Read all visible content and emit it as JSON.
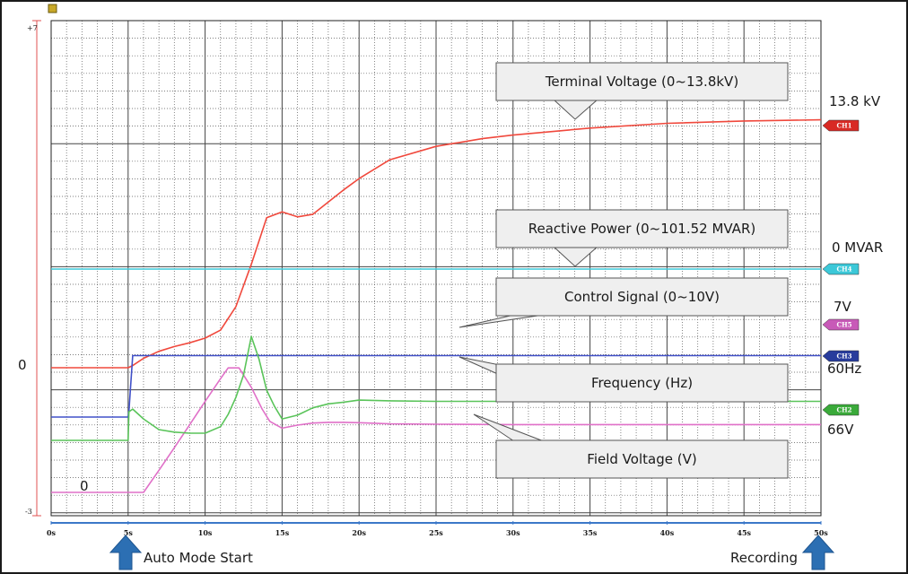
{
  "chart_data": {
    "type": "line",
    "x_unit": "s",
    "xlim": [
      0,
      50
    ],
    "x_ticks": [
      "0s",
      "5s",
      "10s",
      "15s",
      "20s",
      "25s",
      "30s",
      "35s",
      "40s",
      "45s",
      "50s"
    ],
    "y_ticks": {
      "top": "+7",
      "bottom": "-3"
    },
    "grid": true,
    "zero_labels": {
      "left": "0",
      "inner": "0"
    },
    "series": [
      {
        "name": "Terminal Voltage (0~13.8kV)",
        "channel": "CH1",
        "end_label": "13.8 kV",
        "color": "#f0483c",
        "x": [
          0,
          5,
          5.3,
          6,
          7,
          8,
          9,
          10,
          11,
          12,
          13,
          14,
          15,
          16,
          17,
          18,
          19,
          20,
          22,
          25,
          28,
          30,
          35,
          40,
          45,
          50
        ],
        "y": [
          0,
          0,
          0.09,
          0.4,
          0.7,
          0.9,
          1.06,
          1.26,
          1.6,
          2.6,
          4.4,
          6.38,
          6.63,
          6.42,
          6.53,
          7.05,
          7.57,
          8.05,
          8.85,
          9.42,
          9.75,
          9.9,
          10.2,
          10.4,
          10.5,
          10.55
        ]
      },
      {
        "name": "Reactive Power (0~101.52 MVAR)",
        "channel": "CH4",
        "end_label": "0 MVAR",
        "color": "#3cc8d8",
        "x": [
          0,
          50
        ],
        "y": [
          0,
          0
        ]
      },
      {
        "name": "Control Signal (0~10V)",
        "channel": "CH5",
        "end_label": "7V",
        "color": "#e070c8",
        "x": [
          0,
          5,
          6,
          7,
          8,
          9,
          10,
          11,
          11.5,
          12.2,
          13,
          13.7,
          14.2,
          15,
          16,
          17,
          18,
          19,
          20,
          21,
          22,
          25,
          30,
          35,
          40,
          45,
          50
        ],
        "y": [
          0,
          0,
          0,
          1.17,
          2.37,
          3.59,
          4.83,
          6.04,
          6.61,
          6.61,
          5.58,
          4.43,
          3.77,
          3.41,
          3.57,
          3.68,
          3.72,
          3.72,
          3.7,
          3.67,
          3.64,
          3.62,
          3.6,
          3.6,
          3.6,
          3.6,
          3.6
        ]
      },
      {
        "name": "Frequency (Hz)",
        "channel": "CH3",
        "end_label": "60Hz",
        "color": "#4050c8",
        "x": [
          0,
          5,
          5.05,
          5.3,
          6,
          50
        ],
        "y": [
          0,
          0,
          0.16,
          1.67,
          1.67,
          1.67
        ]
      },
      {
        "name": "Field Voltage (V)",
        "channel": "CH2",
        "end_label": "66V",
        "color": "#5ac45a",
        "x": [
          0,
          5,
          5.05,
          5.3,
          6,
          7,
          8,
          9,
          10,
          11,
          11.5,
          12,
          12.5,
          13,
          13.5,
          14,
          14.5,
          15,
          16,
          17,
          18,
          19,
          20,
          22,
          25,
          30,
          35,
          40,
          45,
          50
        ],
        "y": [
          0,
          0,
          1.52,
          1.66,
          1.14,
          0.57,
          0.44,
          0.38,
          0.38,
          0.73,
          1.38,
          2.28,
          3.48,
          5.52,
          4.31,
          2.66,
          1.82,
          1.14,
          1.34,
          1.73,
          1.94,
          2.03,
          2.14,
          2.1,
          2.07,
          2.07,
          2.07,
          2.07,
          2.07,
          2.07
        ]
      }
    ],
    "annotations": {
      "auto_mode_start": "Auto Mode Start",
      "recording": "Recording"
    }
  }
}
